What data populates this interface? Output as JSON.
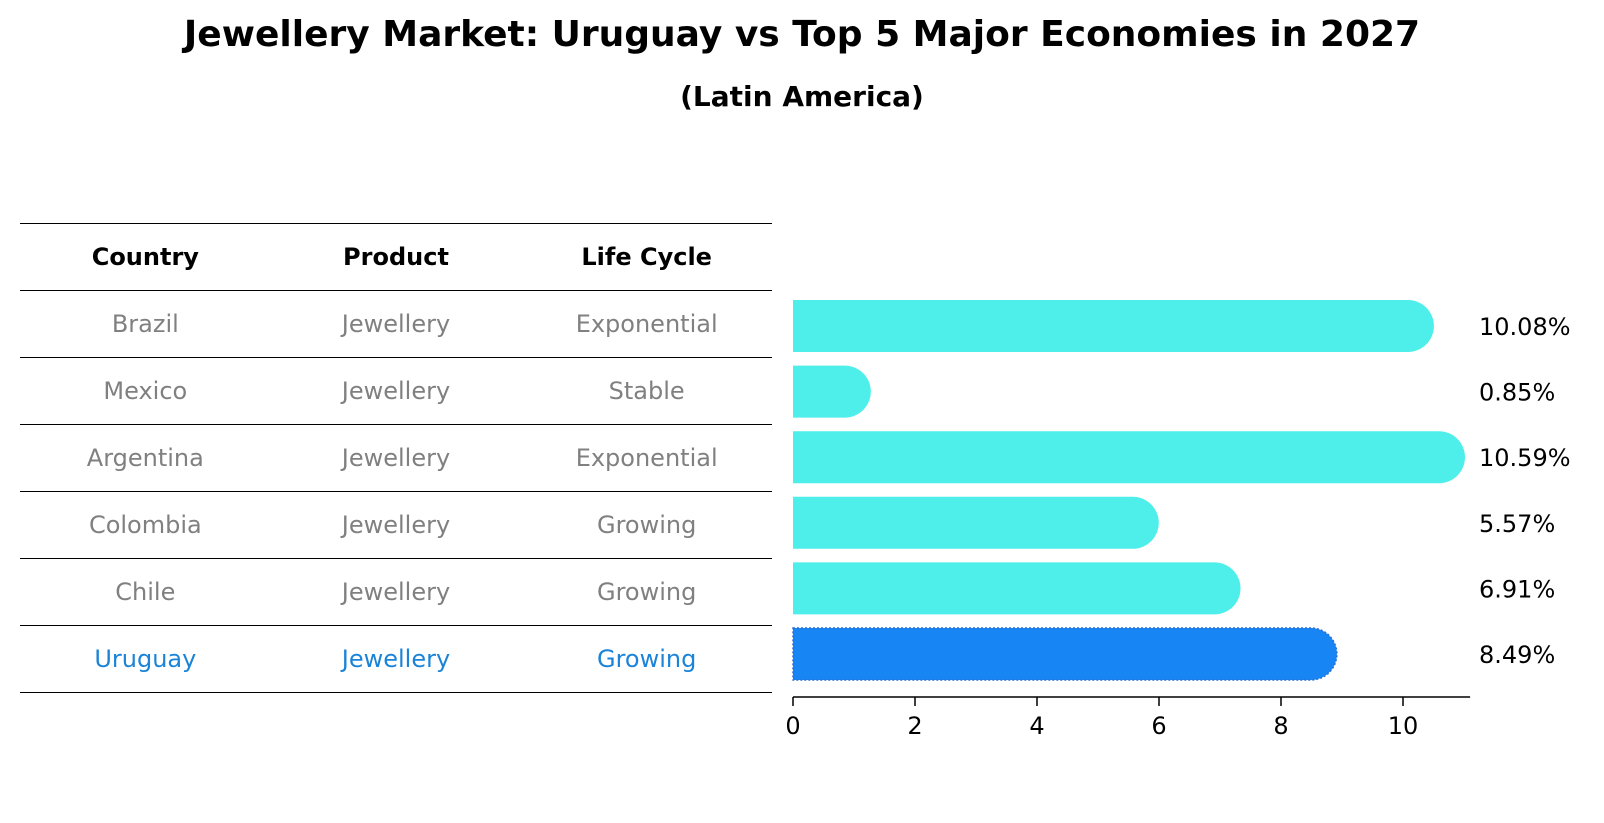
{
  "title": "Jewellery Market: Uruguay vs Top 5 Major Economies in 2027",
  "subtitle": "(Latin America)",
  "table": {
    "headers": [
      "Country",
      "Product",
      "Life Cycle"
    ],
    "rows": [
      {
        "country": "Brazil",
        "product": "Jewellery",
        "life_cycle": "Exponential"
      },
      {
        "country": "Mexico",
        "product": "Jewellery",
        "life_cycle": "Stable"
      },
      {
        "country": "Argentina",
        "product": "Jewellery",
        "life_cycle": "Exponential"
      },
      {
        "country": "Colombia",
        "product": "Jewellery",
        "life_cycle": "Growing"
      },
      {
        "country": "Chile",
        "product": "Jewellery",
        "life_cycle": "Growing"
      },
      {
        "country": "Uruguay",
        "product": "Jewellery",
        "life_cycle": "Growing"
      }
    ],
    "highlight_row": "Uruguay"
  },
  "colors": {
    "bar": "#4eeeea",
    "highlight_bar": "#1785f3",
    "table_text": "#808080",
    "highlight_text": "#1b84d8"
  },
  "chart_data": {
    "type": "bar",
    "orientation": "horizontal",
    "title": "Jewellery Market: Uruguay vs Top 5 Major Economies in 2027",
    "subtitle": "(Latin America)",
    "categories": [
      "Brazil",
      "Mexico",
      "Argentina",
      "Colombia",
      "Chile",
      "Uruguay"
    ],
    "values": [
      10.08,
      0.85,
      10.59,
      5.57,
      6.91,
      8.49
    ],
    "value_labels": [
      "10.08%",
      "0.85%",
      "10.59%",
      "5.57%",
      "6.91%",
      "8.49%"
    ],
    "highlight": "Uruguay",
    "xlim": [
      0,
      11.1
    ],
    "xticks": [
      0,
      2,
      4,
      6,
      8,
      10
    ],
    "xlabel": "",
    "ylabel": "",
    "grid": false
  }
}
